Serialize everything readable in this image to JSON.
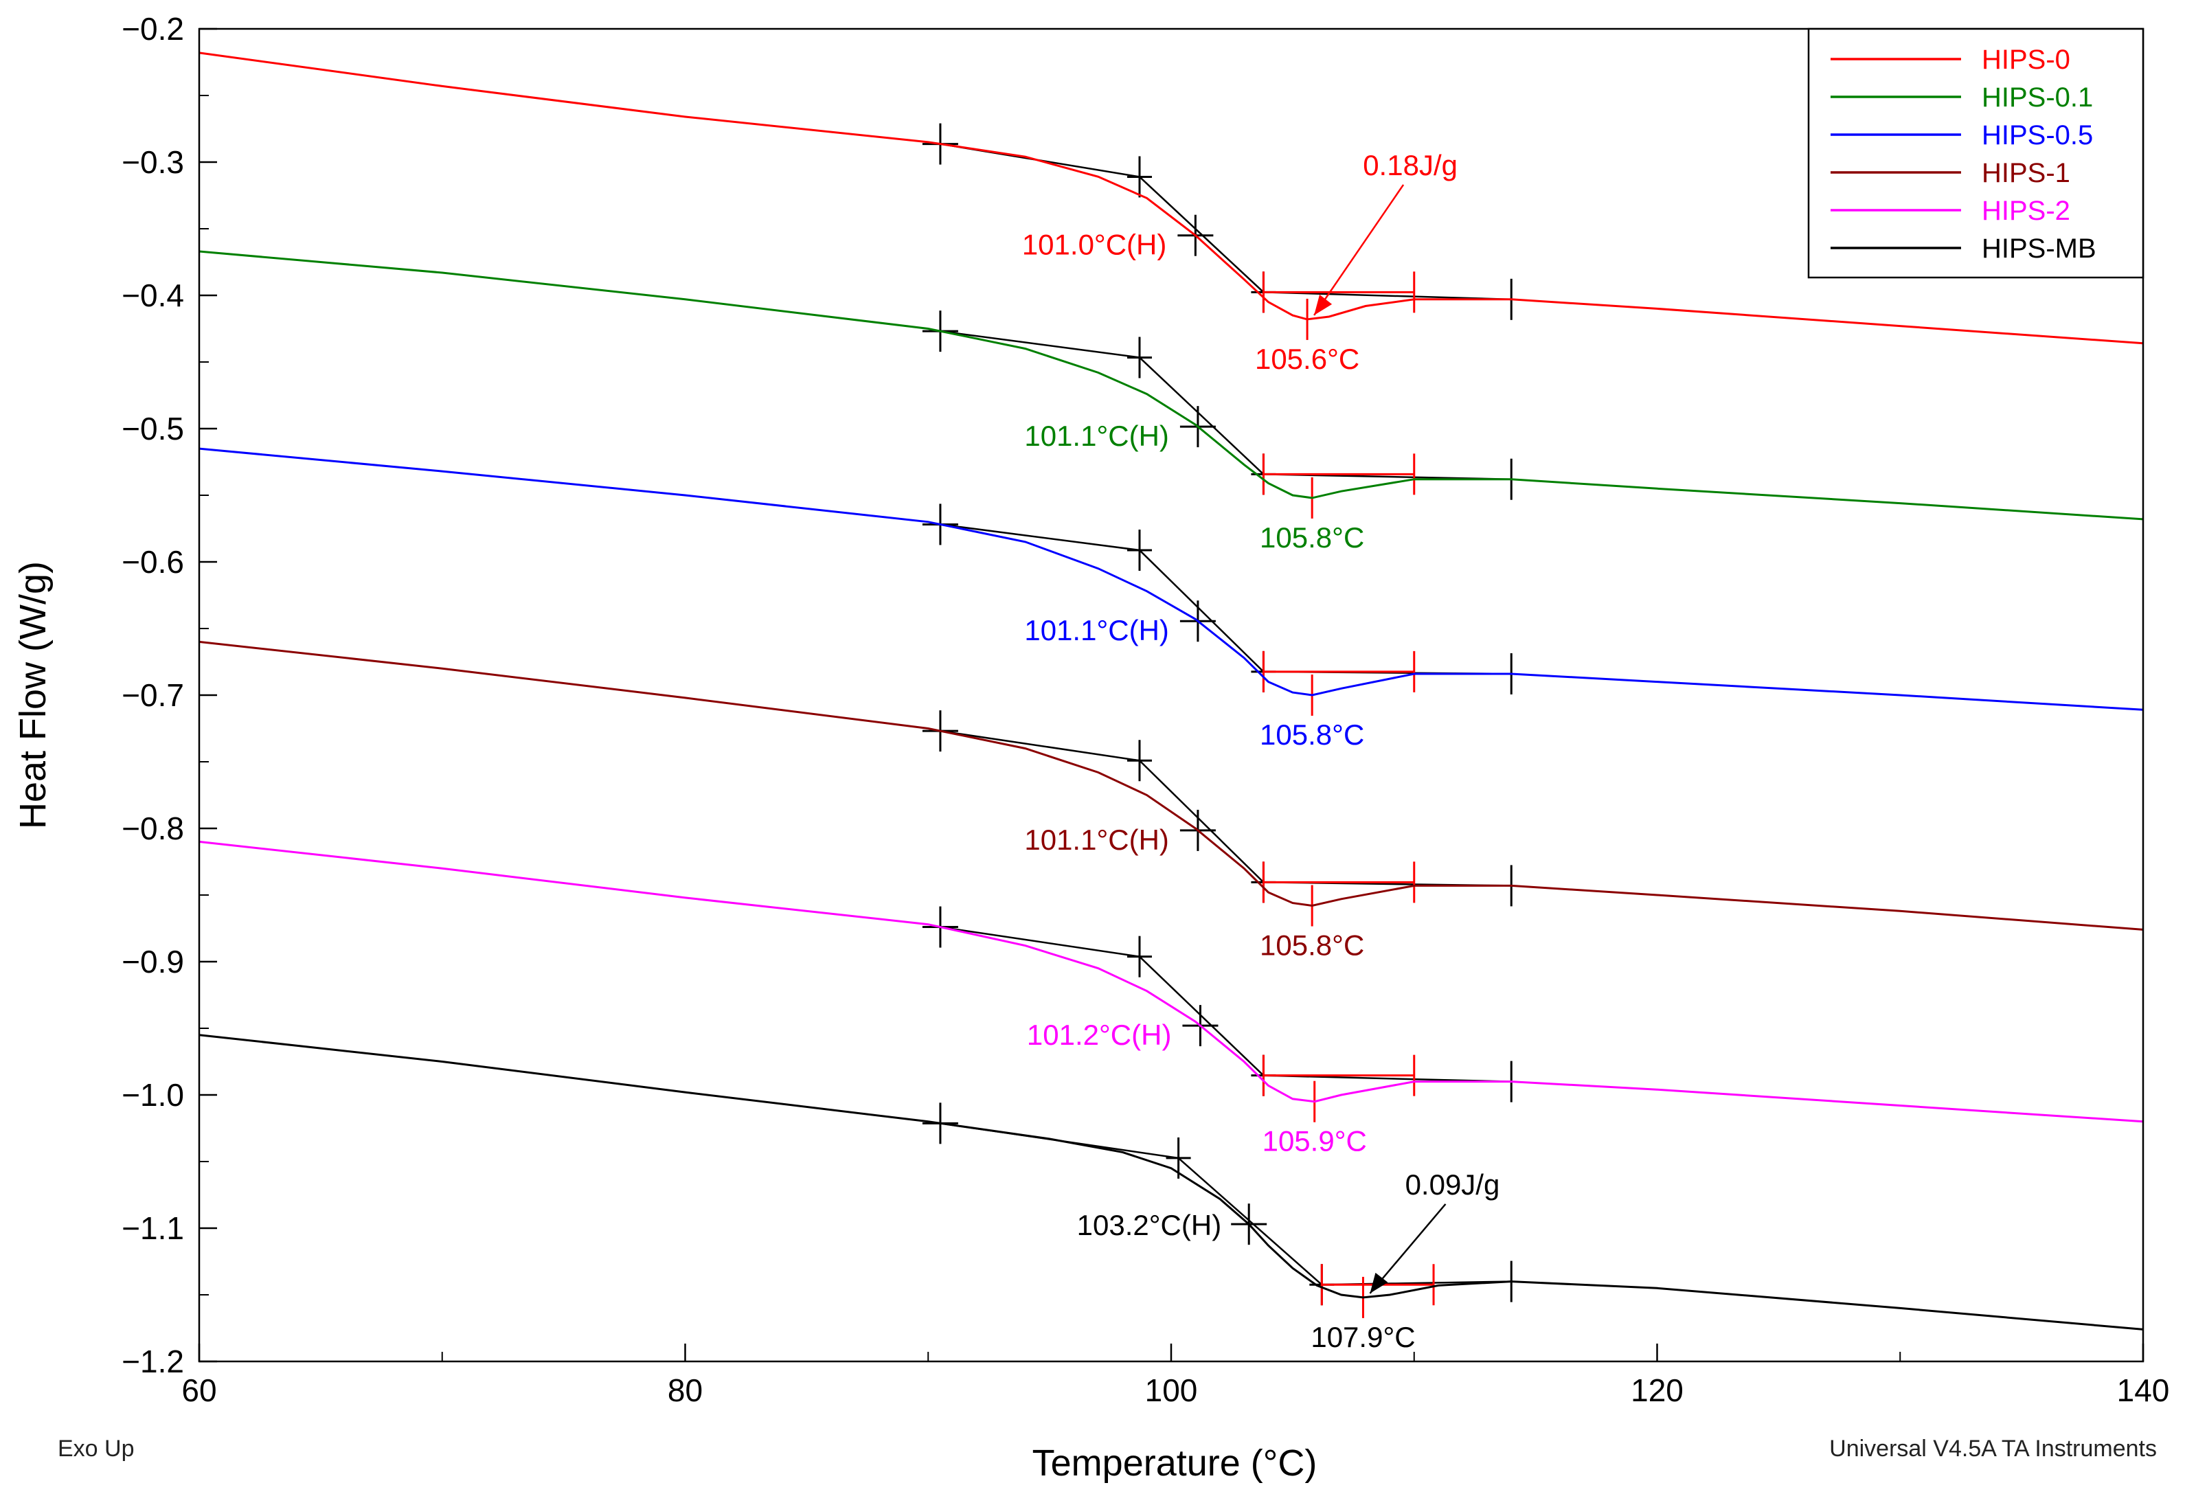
{
  "chart_data": {
    "type": "line",
    "title": "",
    "xlabel": "Temperature (°C)",
    "ylabel": "Heat Flow (W/g)",
    "xlim": [
      60,
      140
    ],
    "ylim": [
      -1.2,
      -0.2
    ],
    "xticks": [
      60,
      80,
      100,
      120,
      140
    ],
    "yticks": [
      -0.2,
      -0.3,
      -0.4,
      -0.5,
      -0.6,
      -0.7,
      -0.8,
      -0.9,
      -1.0,
      -1.1,
      -1.2
    ],
    "ytick_labels": [
      "−0.2",
      "−0.3",
      "−0.4",
      "−0.5",
      "−0.6",
      "−0.7",
      "−0.8",
      "−0.9",
      "−1.0",
      "−1.1",
      "−1.2"
    ],
    "legend_position": "top-right",
    "footer_left": "Exo Up",
    "footer_right": "Universal V4.5A TA Instruments",
    "series": [
      {
        "name": "HIPS-0",
        "color": "#ff0000",
        "x": [
          60,
          70,
          80,
          90,
          94,
          97,
          99,
          101,
          103,
          104,
          105,
          105.6,
          106.5,
          108,
          110,
          114,
          120,
          130,
          140
        ],
        "y": [
          -0.218,
          -0.243,
          -0.266,
          -0.285,
          -0.296,
          -0.311,
          -0.327,
          -0.355,
          -0.388,
          -0.405,
          -0.415,
          -0.418,
          -0.416,
          -0.408,
          -0.403,
          -0.403,
          -0.41,
          -0.423,
          -0.436
        ],
        "glass_transition": "101.0°C(H)",
        "peak": "105.6°C",
        "enthalpy": "0.18J/g"
      },
      {
        "name": "HIPS-0.1",
        "color": "#008000",
        "x": [
          60,
          70,
          80,
          90,
          94,
          97,
          99,
          101,
          103,
          104,
          105,
          105.8,
          107,
          110,
          114,
          120,
          130,
          140
        ],
        "y": [
          -0.367,
          -0.383,
          -0.403,
          -0.425,
          -0.44,
          -0.458,
          -0.474,
          -0.497,
          -0.527,
          -0.541,
          -0.55,
          -0.552,
          -0.547,
          -0.538,
          -0.538,
          -0.545,
          -0.556,
          -0.568
        ],
        "glass_transition": "101.1°C(H)",
        "peak": "105.8°C"
      },
      {
        "name": "HIPS-0.5",
        "color": "#0000ff",
        "x": [
          60,
          70,
          80,
          90,
          94,
          97,
          99,
          101,
          103,
          104,
          105,
          105.8,
          107,
          110,
          114,
          120,
          130,
          140
        ],
        "y": [
          -0.515,
          -0.532,
          -0.55,
          -0.57,
          -0.585,
          -0.605,
          -0.622,
          -0.643,
          -0.672,
          -0.69,
          -0.698,
          -0.7,
          -0.695,
          -0.684,
          -0.684,
          -0.69,
          -0.7,
          -0.711
        ],
        "glass_transition": "101.1°C(H)",
        "peak": "105.8°C"
      },
      {
        "name": "HIPS-1",
        "color": "#8b0000",
        "x": [
          60,
          70,
          80,
          90,
          94,
          97,
          99,
          101,
          103,
          104,
          105,
          105.8,
          107,
          110,
          114,
          120,
          130,
          140
        ],
        "y": [
          -0.66,
          -0.68,
          -0.702,
          -0.725,
          -0.74,
          -0.758,
          -0.775,
          -0.8,
          -0.83,
          -0.848,
          -0.856,
          -0.858,
          -0.853,
          -0.843,
          -0.843,
          -0.85,
          -0.862,
          -0.876
        ],
        "glass_transition": "101.1°C(H)",
        "peak": "105.8°C"
      },
      {
        "name": "HIPS-2",
        "color": "#ff00ff",
        "x": [
          60,
          70,
          80,
          90,
          94,
          97,
          99,
          101,
          103,
          104,
          105,
          105.9,
          107,
          110,
          114,
          120,
          130,
          140
        ],
        "y": [
          -0.81,
          -0.83,
          -0.852,
          -0.872,
          -0.888,
          -0.905,
          -0.922,
          -0.945,
          -0.975,
          -0.993,
          -1.003,
          -1.005,
          -1.0,
          -0.99,
          -0.99,
          -0.996,
          -1.008,
          -1.02
        ],
        "glass_transition": "101.2°C(H)",
        "peak": "105.9°C"
      },
      {
        "name": "HIPS-MB",
        "color": "#000000",
        "x": [
          60,
          70,
          80,
          90,
          95,
          98,
          100,
          102,
          103.2,
          104,
          105,
          106,
          107,
          107.9,
          109,
          111,
          114,
          120,
          130,
          140
        ],
        "y": [
          -0.955,
          -0.975,
          -0.998,
          -1.02,
          -1.033,
          -1.043,
          -1.055,
          -1.078,
          -1.097,
          -1.113,
          -1.13,
          -1.143,
          -1.15,
          -1.152,
          -1.15,
          -1.143,
          -1.14,
          -1.145,
          -1.16,
          -1.176
        ],
        "glass_transition": "103.2°C(H)",
        "peak": "107.9°C",
        "enthalpy": "0.09J/g"
      }
    ]
  }
}
